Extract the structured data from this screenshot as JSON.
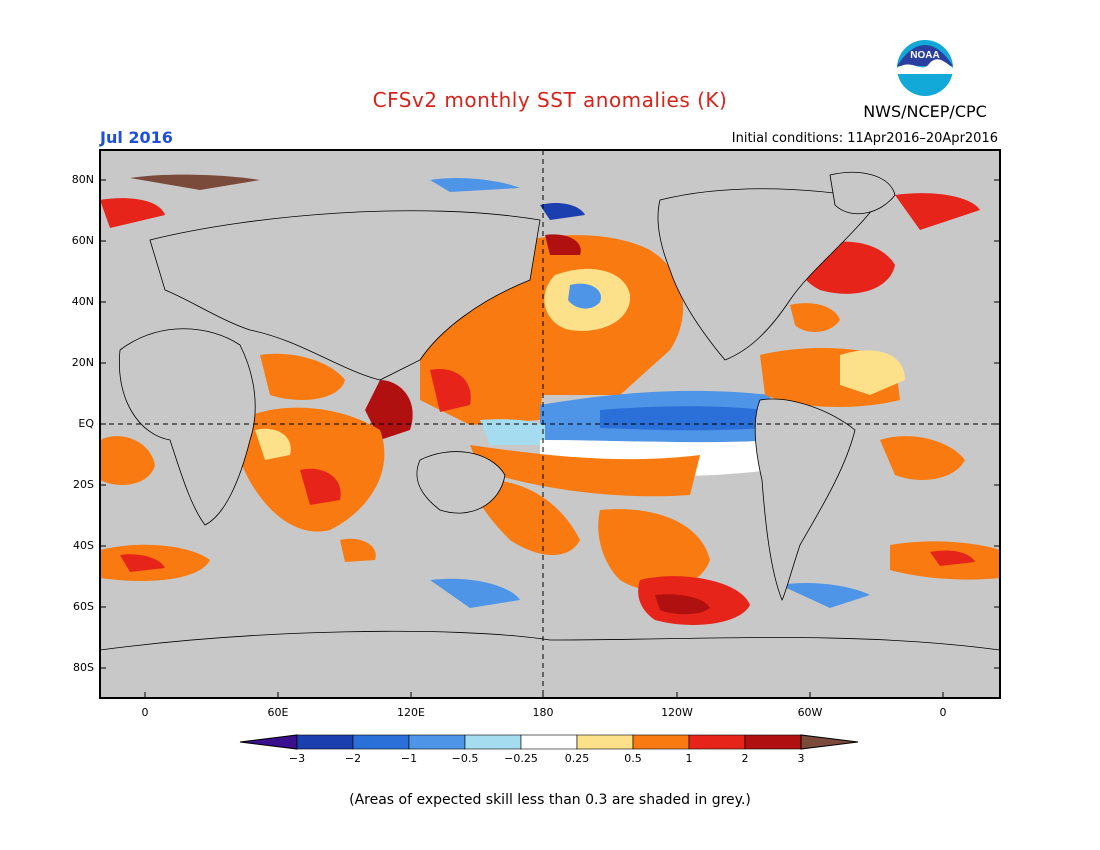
{
  "title": "CFSv2 monthly SST anomalies (K)",
  "organization": "NWS/NCEP/CPC",
  "logo_text": "NOAA",
  "target_month": "Jul 2016",
  "initial_conditions": "Initial conditions: 11Apr2016–20Apr2016",
  "footnote": "(Areas of expected skill less than 0.3 are shaded in grey.)",
  "lat_labels": [
    "80N",
    "60N",
    "40N",
    "20N",
    "EQ",
    "20S",
    "40S",
    "60S",
    "80S"
  ],
  "lon_labels": [
    "0",
    "60E",
    "120E",
    "180",
    "120W",
    "60W",
    "0"
  ],
  "colorbar": {
    "labels": [
      "−3",
      "−2",
      "−1",
      "−0.5",
      "−0.25",
      "0.25",
      "0.5",
      "1",
      "2",
      "3"
    ],
    "colors": [
      "#1c3fb0",
      "#2a70d8",
      "#4e95e8",
      "#a6dcf0",
      "#ffffff",
      "#fde08a",
      "#f97a10",
      "#e62419",
      "#b01010"
    ],
    "low_extend_color": "#3a0f8e",
    "high_extend_color": "#7a4a3a"
  },
  "colors": {
    "title": "#d8231a",
    "month": "#1e4fd8",
    "land_and_low_skill": "#c8c8c8"
  }
}
